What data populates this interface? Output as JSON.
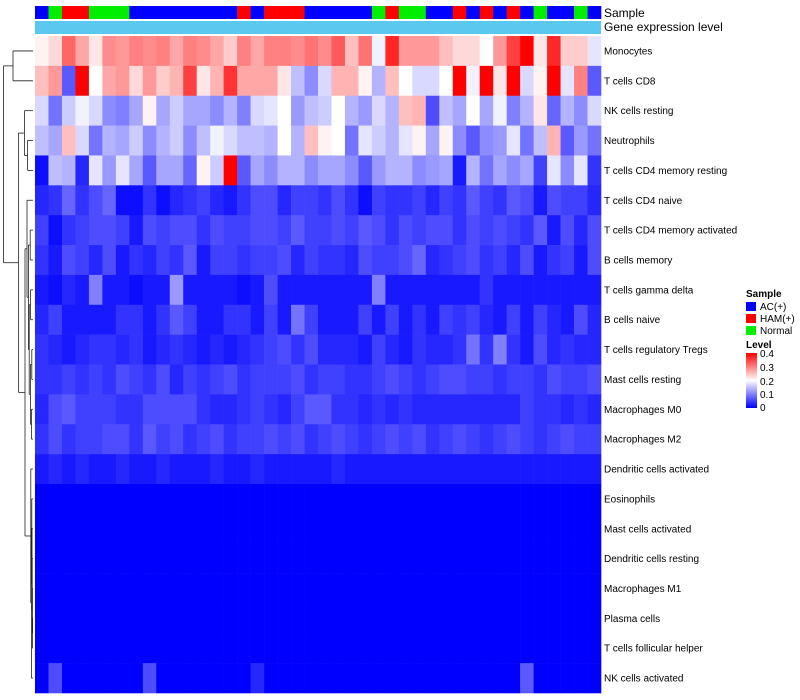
{
  "chart_data": {
    "type": "heatmap",
    "annotation_labels": [
      "Sample",
      "Gene expression level"
    ],
    "row_labels": [
      "Monocytes",
      "T cells CD8",
      "NK cells resting",
      "Neutrophils",
      "T cells CD4 memory resting",
      "T cells CD4 naive",
      "T cells CD4 memory activated",
      "B cells memory",
      "T cells gamma delta",
      "B cells naive",
      "T cells regulatory  Tregs",
      "Mast cells resting",
      "Macrophages M0",
      "Macrophages M2",
      "Dendritic cells activated",
      "Eosinophils",
      "Mast cells activated",
      "Dendritic cells resting",
      "Macrophages M1",
      "Plasma cells",
      "T cells follicular helper",
      "NK cells activated"
    ],
    "sample_groups": [
      "AC",
      "Normal",
      "HAM",
      "HAM",
      "Normal",
      "Normal",
      "Normal",
      "AC",
      "AC",
      "AC",
      "AC",
      "AC",
      "AC",
      "AC",
      "AC",
      "HAM",
      "AC",
      "HAM",
      "HAM",
      "HAM",
      "AC",
      "AC",
      "AC",
      "AC",
      "AC",
      "Normal",
      "HAM",
      "Normal",
      "Normal",
      "AC",
      "AC",
      "HAM",
      "AC",
      "HAM",
      "AC",
      "HAM",
      "AC",
      "Normal",
      "AC",
      "AC",
      "Normal",
      "AC"
    ],
    "sample_legend": {
      "title": "Sample",
      "entries": [
        {
          "label": "AC(+)",
          "color": "#0000ff"
        },
        {
          "label": "HAM(+)",
          "color": "#ff0000"
        },
        {
          "label": "Normal",
          "color": "#00ee00"
        }
      ]
    },
    "level_legend": {
      "title": "Level",
      "ticks": [
        "0.4",
        "0.3",
        "0.2",
        "0.1",
        "0"
      ],
      "range": [
        0,
        0.4
      ]
    },
    "dendrogram": "hierarchical clustering of rows (left side)",
    "values": [
      [
        0.21,
        0.23,
        0.32,
        0.27,
        0.22,
        0.29,
        0.28,
        0.3,
        0.29,
        0.3,
        0.27,
        0.3,
        0.29,
        0.27,
        0.24,
        0.3,
        0.27,
        0.3,
        0.3,
        0.29,
        0.31,
        0.29,
        0.33,
        0.25,
        0.31,
        0.19,
        0.37,
        0.28,
        0.28,
        0.28,
        0.25,
        0.23,
        0.23,
        0.2,
        0.28,
        0.35,
        0.4,
        0.22,
        0.37,
        0.24,
        0.24,
        0.18
      ],
      [
        0.25,
        0.28,
        0.07,
        0.4,
        0.2,
        0.27,
        0.28,
        0.23,
        0.28,
        0.24,
        0.26,
        0.35,
        0.22,
        0.26,
        0.36,
        0.27,
        0.27,
        0.27,
        0.22,
        0.15,
        0.11,
        0.17,
        0.26,
        0.26,
        0.21,
        0.14,
        0.25,
        0.2,
        0.17,
        0.17,
        0.2,
        0.4,
        0.19,
        0.4,
        0.22,
        0.4,
        0.17,
        0.21,
        0.4,
        0.18,
        0.3,
        0.07
      ],
      [
        0.17,
        0.09,
        0.16,
        0.19,
        0.17,
        0.11,
        0.1,
        0.13,
        0.21,
        0.13,
        0.16,
        0.13,
        0.13,
        0.11,
        0.14,
        0.1,
        0.17,
        0.18,
        0.2,
        0.12,
        0.15,
        0.16,
        0.2,
        0.14,
        0.12,
        0.17,
        0.14,
        0.25,
        0.26,
        0.06,
        0.15,
        0.13,
        0.2,
        0.13,
        0.19,
        0.1,
        0.14,
        0.22,
        0.08,
        0.14,
        0.11,
        0.17
      ],
      [
        0.15,
        0.13,
        0.25,
        0.17,
        0.09,
        0.14,
        0.13,
        0.16,
        0.11,
        0.14,
        0.16,
        0.11,
        0.15,
        0.19,
        0.17,
        0.15,
        0.15,
        0.14,
        0.2,
        0.14,
        0.25,
        0.21,
        0.2,
        0.09,
        0.18,
        0.16,
        0.14,
        0.18,
        0.21,
        0.13,
        0.21,
        0.11,
        0.07,
        0.11,
        0.12,
        0.18,
        0.09,
        0.15,
        0.26,
        0.07,
        0.12,
        0.09
      ],
      [
        0.01,
        0.15,
        0.14,
        0.03,
        0.18,
        0.12,
        0.18,
        0.13,
        0.07,
        0.13,
        0.13,
        0.08,
        0.21,
        0.16,
        0.4,
        0.07,
        0.13,
        0.11,
        0.14,
        0.14,
        0.11,
        0.13,
        0.13,
        0.11,
        0.07,
        0.12,
        0.14,
        0.14,
        0.11,
        0.12,
        0.13,
        0.02,
        0.14,
        0.09,
        0.13,
        0.11,
        0.13,
        0.05,
        0.18,
        0.11,
        0.18,
        0.04
      ],
      [
        0.03,
        0.04,
        0.08,
        0.04,
        0.06,
        0.08,
        0.01,
        0.01,
        0.04,
        0.01,
        0.03,
        0.04,
        0.05,
        0.03,
        0.02,
        0.04,
        0.06,
        0.06,
        0.03,
        0.05,
        0.05,
        0.04,
        0.06,
        0.04,
        0.01,
        0.05,
        0.04,
        0.04,
        0.05,
        0.03,
        0.05,
        0.04,
        0.07,
        0.05,
        0.04,
        0.07,
        0.06,
        0.02,
        0.06,
        0.05,
        0.05,
        0.03
      ],
      [
        0.05,
        0.01,
        0.04,
        0.05,
        0.06,
        0.06,
        0.05,
        0.02,
        0.06,
        0.05,
        0.06,
        0.06,
        0.04,
        0.06,
        0.05,
        0.05,
        0.06,
        0.06,
        0.05,
        0.07,
        0.05,
        0.05,
        0.06,
        0.05,
        0.07,
        0.06,
        0.04,
        0.06,
        0.05,
        0.06,
        0.06,
        0.04,
        0.06,
        0.05,
        0.06,
        0.05,
        0.04,
        0.07,
        0.02,
        0.06,
        0.03,
        0.06
      ],
      [
        0.04,
        0.02,
        0.06,
        0.05,
        0.03,
        0.06,
        0.02,
        0.04,
        0.03,
        0.05,
        0.04,
        0.07,
        0.02,
        0.05,
        0.05,
        0.04,
        0.05,
        0.05,
        0.06,
        0.03,
        0.05,
        0.04,
        0.04,
        0.03,
        0.06,
        0.05,
        0.05,
        0.06,
        0.08,
        0.03,
        0.04,
        0.05,
        0.06,
        0.04,
        0.05,
        0.03,
        0.06,
        0.02,
        0.04,
        0.05,
        0.02,
        0.06
      ],
      [
        0.02,
        0.01,
        0.03,
        0.02,
        0.1,
        0.02,
        0.02,
        0.01,
        0.02,
        0.02,
        0.12,
        0.02,
        0.02,
        0.02,
        0.02,
        0.01,
        0.02,
        0.06,
        0.02,
        0.02,
        0.02,
        0.02,
        0.02,
        0.02,
        0.02,
        0.1,
        0.02,
        0.02,
        0.02,
        0.02,
        0.02,
        0.02,
        0.02,
        0.04,
        0.02,
        0.02,
        0.02,
        0.02,
        0.02,
        0.02,
        0.02,
        0.02
      ],
      [
        0.03,
        0.05,
        0.02,
        0.02,
        0.02,
        0.02,
        0.04,
        0.04,
        0.02,
        0.04,
        0.07,
        0.05,
        0.02,
        0.02,
        0.04,
        0.04,
        0.02,
        0.05,
        0.02,
        0.09,
        0.05,
        0.02,
        0.02,
        0.02,
        0.05,
        0.02,
        0.05,
        0.02,
        0.04,
        0.02,
        0.05,
        0.04,
        0.05,
        0.03,
        0.02,
        0.05,
        0.02,
        0.05,
        0.03,
        0.02,
        0.06,
        0.03
      ],
      [
        0.04,
        0.03,
        0.02,
        0.03,
        0.04,
        0.04,
        0.03,
        0.04,
        0.02,
        0.03,
        0.04,
        0.03,
        0.02,
        0.03,
        0.02,
        0.03,
        0.04,
        0.05,
        0.06,
        0.04,
        0.06,
        0.03,
        0.03,
        0.03,
        0.02,
        0.05,
        0.03,
        0.02,
        0.04,
        0.03,
        0.03,
        0.04,
        0.09,
        0.04,
        0.1,
        0.04,
        0.02,
        0.06,
        0.03,
        0.04,
        0.03,
        0.03
      ],
      [
        0.04,
        0.04,
        0.05,
        0.04,
        0.05,
        0.04,
        0.06,
        0.05,
        0.04,
        0.06,
        0.03,
        0.05,
        0.04,
        0.05,
        0.06,
        0.04,
        0.05,
        0.05,
        0.05,
        0.06,
        0.04,
        0.05,
        0.05,
        0.04,
        0.04,
        0.05,
        0.06,
        0.05,
        0.04,
        0.05,
        0.06,
        0.06,
        0.05,
        0.05,
        0.04,
        0.05,
        0.05,
        0.04,
        0.06,
        0.05,
        0.05,
        0.06
      ],
      [
        0.03,
        0.06,
        0.07,
        0.05,
        0.05,
        0.05,
        0.04,
        0.04,
        0.06,
        0.06,
        0.06,
        0.06,
        0.04,
        0.03,
        0.03,
        0.04,
        0.05,
        0.04,
        0.03,
        0.05,
        0.07,
        0.07,
        0.04,
        0.04,
        0.03,
        0.04,
        0.03,
        0.04,
        0.03,
        0.03,
        0.03,
        0.03,
        0.03,
        0.03,
        0.03,
        0.03,
        0.05,
        0.04,
        0.04,
        0.03,
        0.04,
        0.03
      ],
      [
        0.04,
        0.06,
        0.04,
        0.05,
        0.05,
        0.06,
        0.06,
        0.04,
        0.07,
        0.05,
        0.06,
        0.04,
        0.05,
        0.06,
        0.04,
        0.05,
        0.05,
        0.06,
        0.05,
        0.06,
        0.04,
        0.05,
        0.06,
        0.05,
        0.04,
        0.05,
        0.06,
        0.05,
        0.06,
        0.04,
        0.05,
        0.06,
        0.05,
        0.04,
        0.05,
        0.06,
        0.05,
        0.04,
        0.05,
        0.06,
        0.05,
        0.05
      ],
      [
        0.02,
        0.03,
        0.02,
        0.03,
        0.02,
        0.02,
        0.03,
        0.02,
        0.02,
        0.03,
        0.02,
        0.02,
        0.02,
        0.03,
        0.02,
        0.02,
        0.03,
        0.02,
        0.02,
        0.02,
        0.02,
        0.02,
        0.03,
        0.02,
        0.02,
        0.02,
        0.02,
        0.02,
        0.02,
        0.02,
        0.02,
        0.02,
        0.02,
        0.02,
        0.02,
        0.02,
        0.02,
        0.02,
        0.02,
        0.02,
        0.02,
        0.02
      ],
      [
        0,
        0,
        0,
        0,
        0,
        0,
        0,
        0,
        0,
        0,
        0,
        0,
        0,
        0,
        0,
        0,
        0,
        0,
        0,
        0,
        0,
        0,
        0,
        0,
        0,
        0,
        0,
        0,
        0,
        0,
        0,
        0,
        0,
        0,
        0,
        0,
        0,
        0,
        0,
        0,
        0,
        0
      ],
      [
        0,
        0,
        0,
        0,
        0,
        0,
        0,
        0,
        0,
        0,
        0,
        0,
        0,
        0,
        0,
        0,
        0,
        0,
        0,
        0,
        0,
        0,
        0,
        0,
        0,
        0,
        0,
        0,
        0,
        0,
        0,
        0,
        0,
        0,
        0,
        0,
        0,
        0,
        0,
        0,
        0,
        0
      ],
      [
        0,
        0,
        0,
        0,
        0,
        0,
        0,
        0,
        0,
        0,
        0,
        0,
        0,
        0,
        0,
        0,
        0,
        0,
        0,
        0,
        0,
        0,
        0,
        0,
        0,
        0,
        0,
        0,
        0,
        0,
        0,
        0,
        0,
        0,
        0,
        0,
        0,
        0,
        0,
        0,
        0,
        0
      ],
      [
        0,
        0,
        0,
        0,
        0,
        0,
        0,
        0,
        0,
        0,
        0,
        0,
        0,
        0,
        0,
        0,
        0,
        0,
        0,
        0,
        0,
        0,
        0,
        0,
        0,
        0,
        0,
        0,
        0,
        0,
        0,
        0,
        0,
        0,
        0,
        0,
        0,
        0,
        0,
        0,
        0,
        0
      ],
      [
        0,
        0,
        0,
        0,
        0,
        0,
        0,
        0,
        0,
        0,
        0,
        0,
        0,
        0,
        0,
        0,
        0,
        0,
        0,
        0,
        0,
        0,
        0,
        0,
        0,
        0,
        0,
        0,
        0,
        0,
        0,
        0,
        0,
        0,
        0,
        0,
        0,
        0,
        0,
        0,
        0,
        0
      ],
      [
        0,
        0,
        0,
        0,
        0,
        0,
        0,
        0,
        0,
        0,
        0,
        0,
        0,
        0,
        0,
        0,
        0,
        0,
        0,
        0,
        0,
        0,
        0,
        0,
        0,
        0,
        0,
        0,
        0,
        0,
        0,
        0,
        0,
        0,
        0,
        0,
        0,
        0,
        0,
        0,
        0,
        0
      ],
      [
        0,
        0.06,
        0,
        0,
        0,
        0,
        0,
        0,
        0.06,
        0,
        0,
        0,
        0,
        0,
        0,
        0,
        0.03,
        0,
        0,
        0,
        0,
        0,
        0,
        0,
        0,
        0,
        0,
        0,
        0,
        0,
        0,
        0,
        0,
        0,
        0,
        0,
        0.07,
        0,
        0,
        0,
        0,
        0
      ]
    ]
  },
  "colors": {
    "low": "#0000ff",
    "mid": "#ffffff",
    "high": "#ff0000",
    "ac": "#0000ff",
    "ham": "#ff0000",
    "normal": "#00ee00",
    "expression_bar": "#5bc8f0"
  }
}
